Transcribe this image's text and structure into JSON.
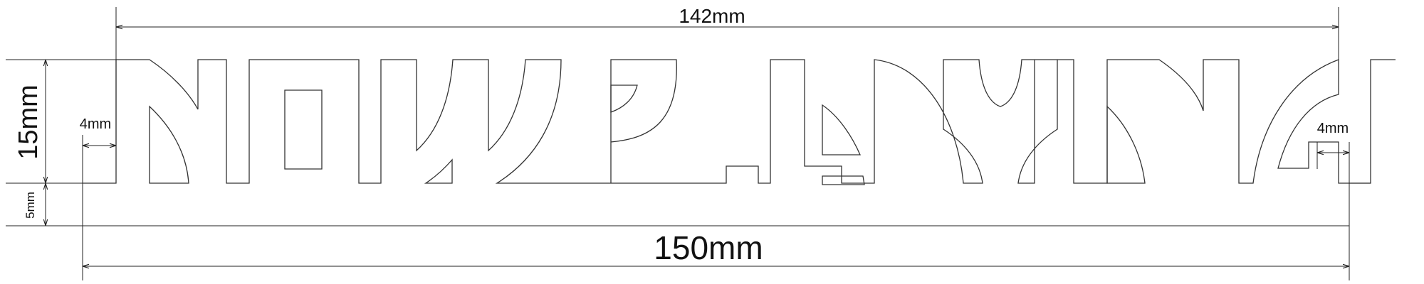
{
  "drawing": {
    "word": "NOWPLAYING",
    "dimensions": {
      "top_width": "142mm",
      "total_width": "150mm",
      "letter_height": "15mm",
      "base_height": "5mm",
      "left_margin": "4mm",
      "right_margin": "4mm"
    }
  },
  "colors": {
    "line": "#333333",
    "text": "#111111",
    "background": "#ffffff"
  }
}
